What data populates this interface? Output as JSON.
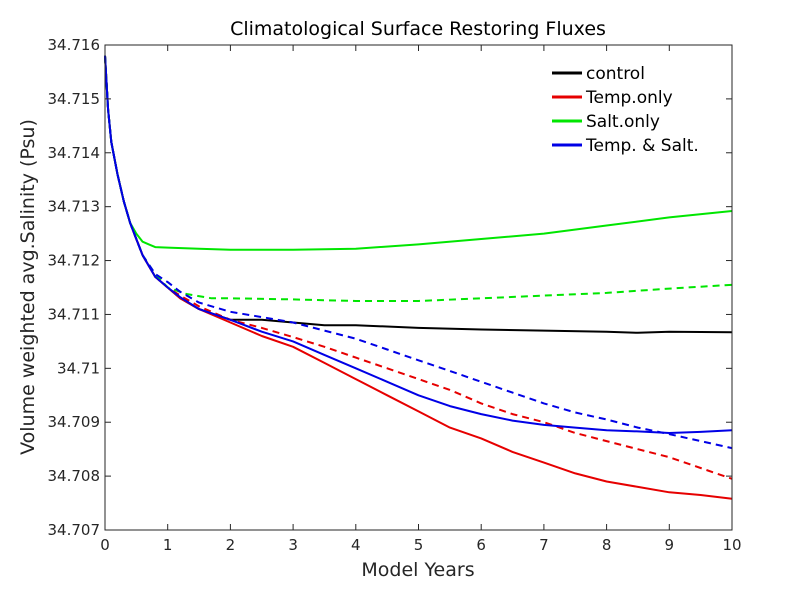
{
  "chart_data": {
    "type": "line",
    "title": "Climatological Surface Restoring Fluxes",
    "xlabel": "Model Years",
    "ylabel": "Volume weighted avg.Salinity (Psu)",
    "xlim": [
      0,
      10
    ],
    "ylim": [
      34.707,
      34.716
    ],
    "xticks": [
      "0",
      "1",
      "2",
      "3",
      "4",
      "5",
      "6",
      "7",
      "8",
      "9",
      "10"
    ],
    "yticks": [
      "34.707",
      "34.708",
      "34.709",
      "34.71",
      "34.711",
      "34.712",
      "34.713",
      "34.714",
      "34.715",
      "34.716"
    ],
    "grid": false,
    "legend_position": "top-right",
    "series": [
      {
        "name": "control",
        "color": "#000000",
        "style": "solid",
        "in_legend": true,
        "x": [
          0,
          0.05,
          0.1,
          0.2,
          0.3,
          0.4,
          0.5,
          0.6,
          0.8,
          1.0,
          1.2,
          1.5,
          2.0,
          2.5,
          3.0,
          3.5,
          4.0,
          5.0,
          6.0,
          7.0,
          8.0,
          8.5,
          9.0,
          10.0
        ],
        "y": [
          34.7158,
          34.7148,
          34.7142,
          34.7136,
          34.7131,
          34.7127,
          34.7124,
          34.7121,
          34.7117,
          34.7115,
          34.7113,
          34.7111,
          34.7109,
          34.7109,
          34.71085,
          34.7108,
          34.7108,
          34.71075,
          34.71072,
          34.7107,
          34.71068,
          34.71066,
          34.71068,
          34.71067
        ]
      },
      {
        "name": "Temp.only",
        "color": "#e60000",
        "style": "solid",
        "in_legend": true,
        "x": [
          0,
          0.05,
          0.1,
          0.2,
          0.3,
          0.4,
          0.5,
          0.6,
          0.8,
          1.0,
          1.2,
          1.5,
          2.0,
          2.5,
          3.0,
          3.5,
          4.0,
          4.5,
          5.0,
          5.5,
          6.0,
          6.5,
          7.0,
          7.5,
          8.0,
          8.5,
          9.0,
          9.5,
          10.0
        ],
        "y": [
          34.7158,
          34.7148,
          34.7142,
          34.7136,
          34.7131,
          34.7127,
          34.7124,
          34.7121,
          34.7117,
          34.7115,
          34.7113,
          34.7111,
          34.71085,
          34.7106,
          34.7104,
          34.7101,
          34.7098,
          34.7095,
          34.7092,
          34.7089,
          34.7087,
          34.70845,
          34.70825,
          34.70805,
          34.7079,
          34.7078,
          34.7077,
          34.70765,
          34.70758
        ]
      },
      {
        "name": "Temp.only (dashed)",
        "color": "#e60000",
        "style": "dashed",
        "in_legend": false,
        "x": [
          0,
          0.05,
          0.1,
          0.2,
          0.3,
          0.4,
          0.5,
          0.6,
          0.8,
          1.0,
          1.2,
          1.5,
          2.0,
          2.5,
          3.0,
          3.5,
          4.0,
          4.5,
          5.0,
          5.5,
          6.0,
          6.5,
          7.0,
          7.5,
          8.0,
          8.5,
          9.0,
          9.5,
          10.0
        ],
        "y": [
          34.7158,
          34.7148,
          34.7142,
          34.7136,
          34.7131,
          34.7127,
          34.7124,
          34.7121,
          34.7117,
          34.7115,
          34.71135,
          34.71115,
          34.7109,
          34.71075,
          34.71058,
          34.7104,
          34.7102,
          34.71,
          34.7098,
          34.7096,
          34.70935,
          34.70915,
          34.709,
          34.7088,
          34.70865,
          34.7085,
          34.70835,
          34.70815,
          34.70795
        ]
      },
      {
        "name": "Salt.only",
        "color": "#00e600",
        "style": "solid",
        "in_legend": true,
        "x": [
          0,
          0.05,
          0.1,
          0.2,
          0.3,
          0.4,
          0.5,
          0.6,
          0.7,
          0.8,
          1.0,
          1.5,
          2.0,
          3.0,
          4.0,
          5.0,
          6.0,
          7.0,
          8.0,
          9.0,
          10.0
        ],
        "y": [
          34.7158,
          34.7148,
          34.7142,
          34.7136,
          34.7131,
          34.7127,
          34.7125,
          34.71235,
          34.7123,
          34.71225,
          34.71224,
          34.71222,
          34.7122,
          34.7122,
          34.71222,
          34.7123,
          34.7124,
          34.7125,
          34.71265,
          34.7128,
          34.71292
        ]
      },
      {
        "name": "Salt.only (dashed)",
        "color": "#00e600",
        "style": "dashed",
        "in_legend": false,
        "x": [
          0,
          0.05,
          0.1,
          0.2,
          0.3,
          0.4,
          0.5,
          0.6,
          0.8,
          1.0,
          1.3,
          1.7,
          2.0,
          3.0,
          4.0,
          5.0,
          6.0,
          7.0,
          8.0,
          9.0,
          10.0
        ],
        "y": [
          34.7158,
          34.7148,
          34.7142,
          34.7136,
          34.7131,
          34.7127,
          34.7124,
          34.7121,
          34.71175,
          34.7115,
          34.71138,
          34.7113,
          34.7113,
          34.71128,
          34.71125,
          34.71125,
          34.7113,
          34.71135,
          34.7114,
          34.71148,
          34.71155
        ]
      },
      {
        "name": "Temp. & Salt.",
        "color": "#0000e6",
        "style": "solid",
        "in_legend": true,
        "x": [
          0,
          0.05,
          0.1,
          0.2,
          0.3,
          0.4,
          0.5,
          0.6,
          0.8,
          1.0,
          1.2,
          1.5,
          2.0,
          2.5,
          3.0,
          3.5,
          4.0,
          4.5,
          5.0,
          5.5,
          6.0,
          6.5,
          7.0,
          7.5,
          8.0,
          8.5,
          9.0,
          9.5,
          10.0
        ],
        "y": [
          34.7158,
          34.7148,
          34.7142,
          34.7136,
          34.7131,
          34.7127,
          34.7124,
          34.7121,
          34.7117,
          34.7115,
          34.71132,
          34.7111,
          34.7109,
          34.71068,
          34.7105,
          34.71025,
          34.71,
          34.70975,
          34.7095,
          34.7093,
          34.70915,
          34.70903,
          34.70895,
          34.7089,
          34.70885,
          34.70883,
          34.7088,
          34.70882,
          34.70885
        ]
      },
      {
        "name": "Temp. & Salt. (dashed)",
        "color": "#0000e6",
        "style": "dashed",
        "in_legend": false,
        "x": [
          0,
          0.05,
          0.1,
          0.2,
          0.3,
          0.4,
          0.5,
          0.6,
          0.8,
          1.0,
          1.2,
          1.5,
          2.0,
          2.5,
          3.0,
          3.5,
          4.0,
          4.5,
          5.0,
          5.5,
          6.0,
          6.5,
          7.0,
          7.5,
          8.0,
          8.5,
          9.0,
          9.5,
          10.0
        ],
        "y": [
          34.7158,
          34.7148,
          34.7142,
          34.7136,
          34.7131,
          34.7127,
          34.7124,
          34.7121,
          34.71175,
          34.7116,
          34.71142,
          34.71122,
          34.71105,
          34.71095,
          34.71085,
          34.7107,
          34.71055,
          34.71035,
          34.71015,
          34.70995,
          34.70975,
          34.70955,
          34.70935,
          34.70918,
          34.70905,
          34.7089,
          34.70878,
          34.70865,
          34.70852
        ]
      }
    ]
  }
}
